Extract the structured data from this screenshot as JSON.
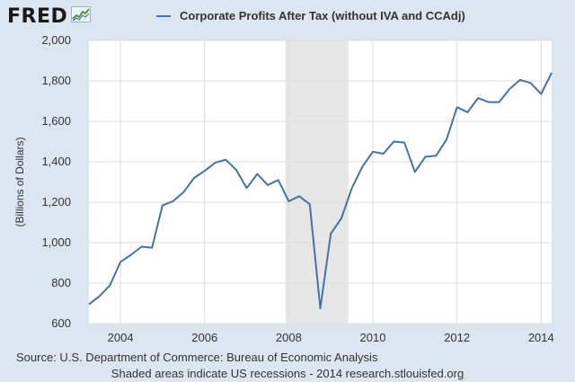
{
  "header": {
    "logo_text": "FRED",
    "logo_icon": "line-chart-icon"
  },
  "colors": {
    "background": "#dce6f0",
    "plot_area": "#ffffff",
    "series": "#4572a7",
    "recession_shade": "#e6e6e6",
    "grid": "#dddddd"
  },
  "chart_data": {
    "type": "line",
    "title": "",
    "xlabel": "",
    "ylabel": "(Billions of Dollars)",
    "xlim": [
      2003.25,
      2014.25
    ],
    "ylim": [
      600,
      2000
    ],
    "grid": true,
    "legend_position": "top",
    "y_ticks": [
      600,
      800,
      1000,
      1200,
      1400,
      1600,
      1800,
      2000
    ],
    "y_tick_labels": [
      "600",
      "800",
      "1,000",
      "1,200",
      "1,400",
      "1,600",
      "1,800",
      "2,000"
    ],
    "x_ticks": [
      2004,
      2006,
      2008,
      2010,
      2012,
      2014
    ],
    "x_tick_labels": [
      "2004",
      "2006",
      "2008",
      "2010",
      "2012",
      "2014"
    ],
    "recessions": [
      {
        "start": 2007.92,
        "end": 2009.42
      }
    ],
    "series": [
      {
        "name": "Corporate Profits After Tax (without IVA and CCAdj)",
        "x": [
          2003.25,
          2003.5,
          2003.75,
          2004.0,
          2004.25,
          2004.5,
          2004.75,
          2005.0,
          2005.25,
          2005.5,
          2005.75,
          2006.0,
          2006.25,
          2006.5,
          2006.75,
          2007.0,
          2007.25,
          2007.5,
          2007.75,
          2008.0,
          2008.25,
          2008.5,
          2008.75,
          2009.0,
          2009.25,
          2009.5,
          2009.75,
          2010.0,
          2010.25,
          2010.5,
          2010.75,
          2011.0,
          2011.25,
          2011.5,
          2011.75,
          2012.0,
          2012.25,
          2012.5,
          2012.75,
          2013.0,
          2013.25,
          2013.5,
          2013.75,
          2014.0,
          2014.25
        ],
        "values": [
          695,
          735,
          790,
          905,
          940,
          980,
          975,
          1185,
          1205,
          1250,
          1320,
          1355,
          1395,
          1410,
          1360,
          1270,
          1340,
          1285,
          1310,
          1205,
          1230,
          1190,
          675,
          1045,
          1120,
          1270,
          1375,
          1450,
          1440,
          1500,
          1495,
          1350,
          1425,
          1430,
          1510,
          1670,
          1645,
          1715,
          1695,
          1695,
          1760,
          1805,
          1790,
          1735,
          1840
        ]
      }
    ]
  },
  "footer": {
    "source": "Source: U.S. Department of Commerce: Bureau of Economic Analysis",
    "notes": "Shaded areas indicate US recessions - 2014 research.stlouisfed.org"
  }
}
